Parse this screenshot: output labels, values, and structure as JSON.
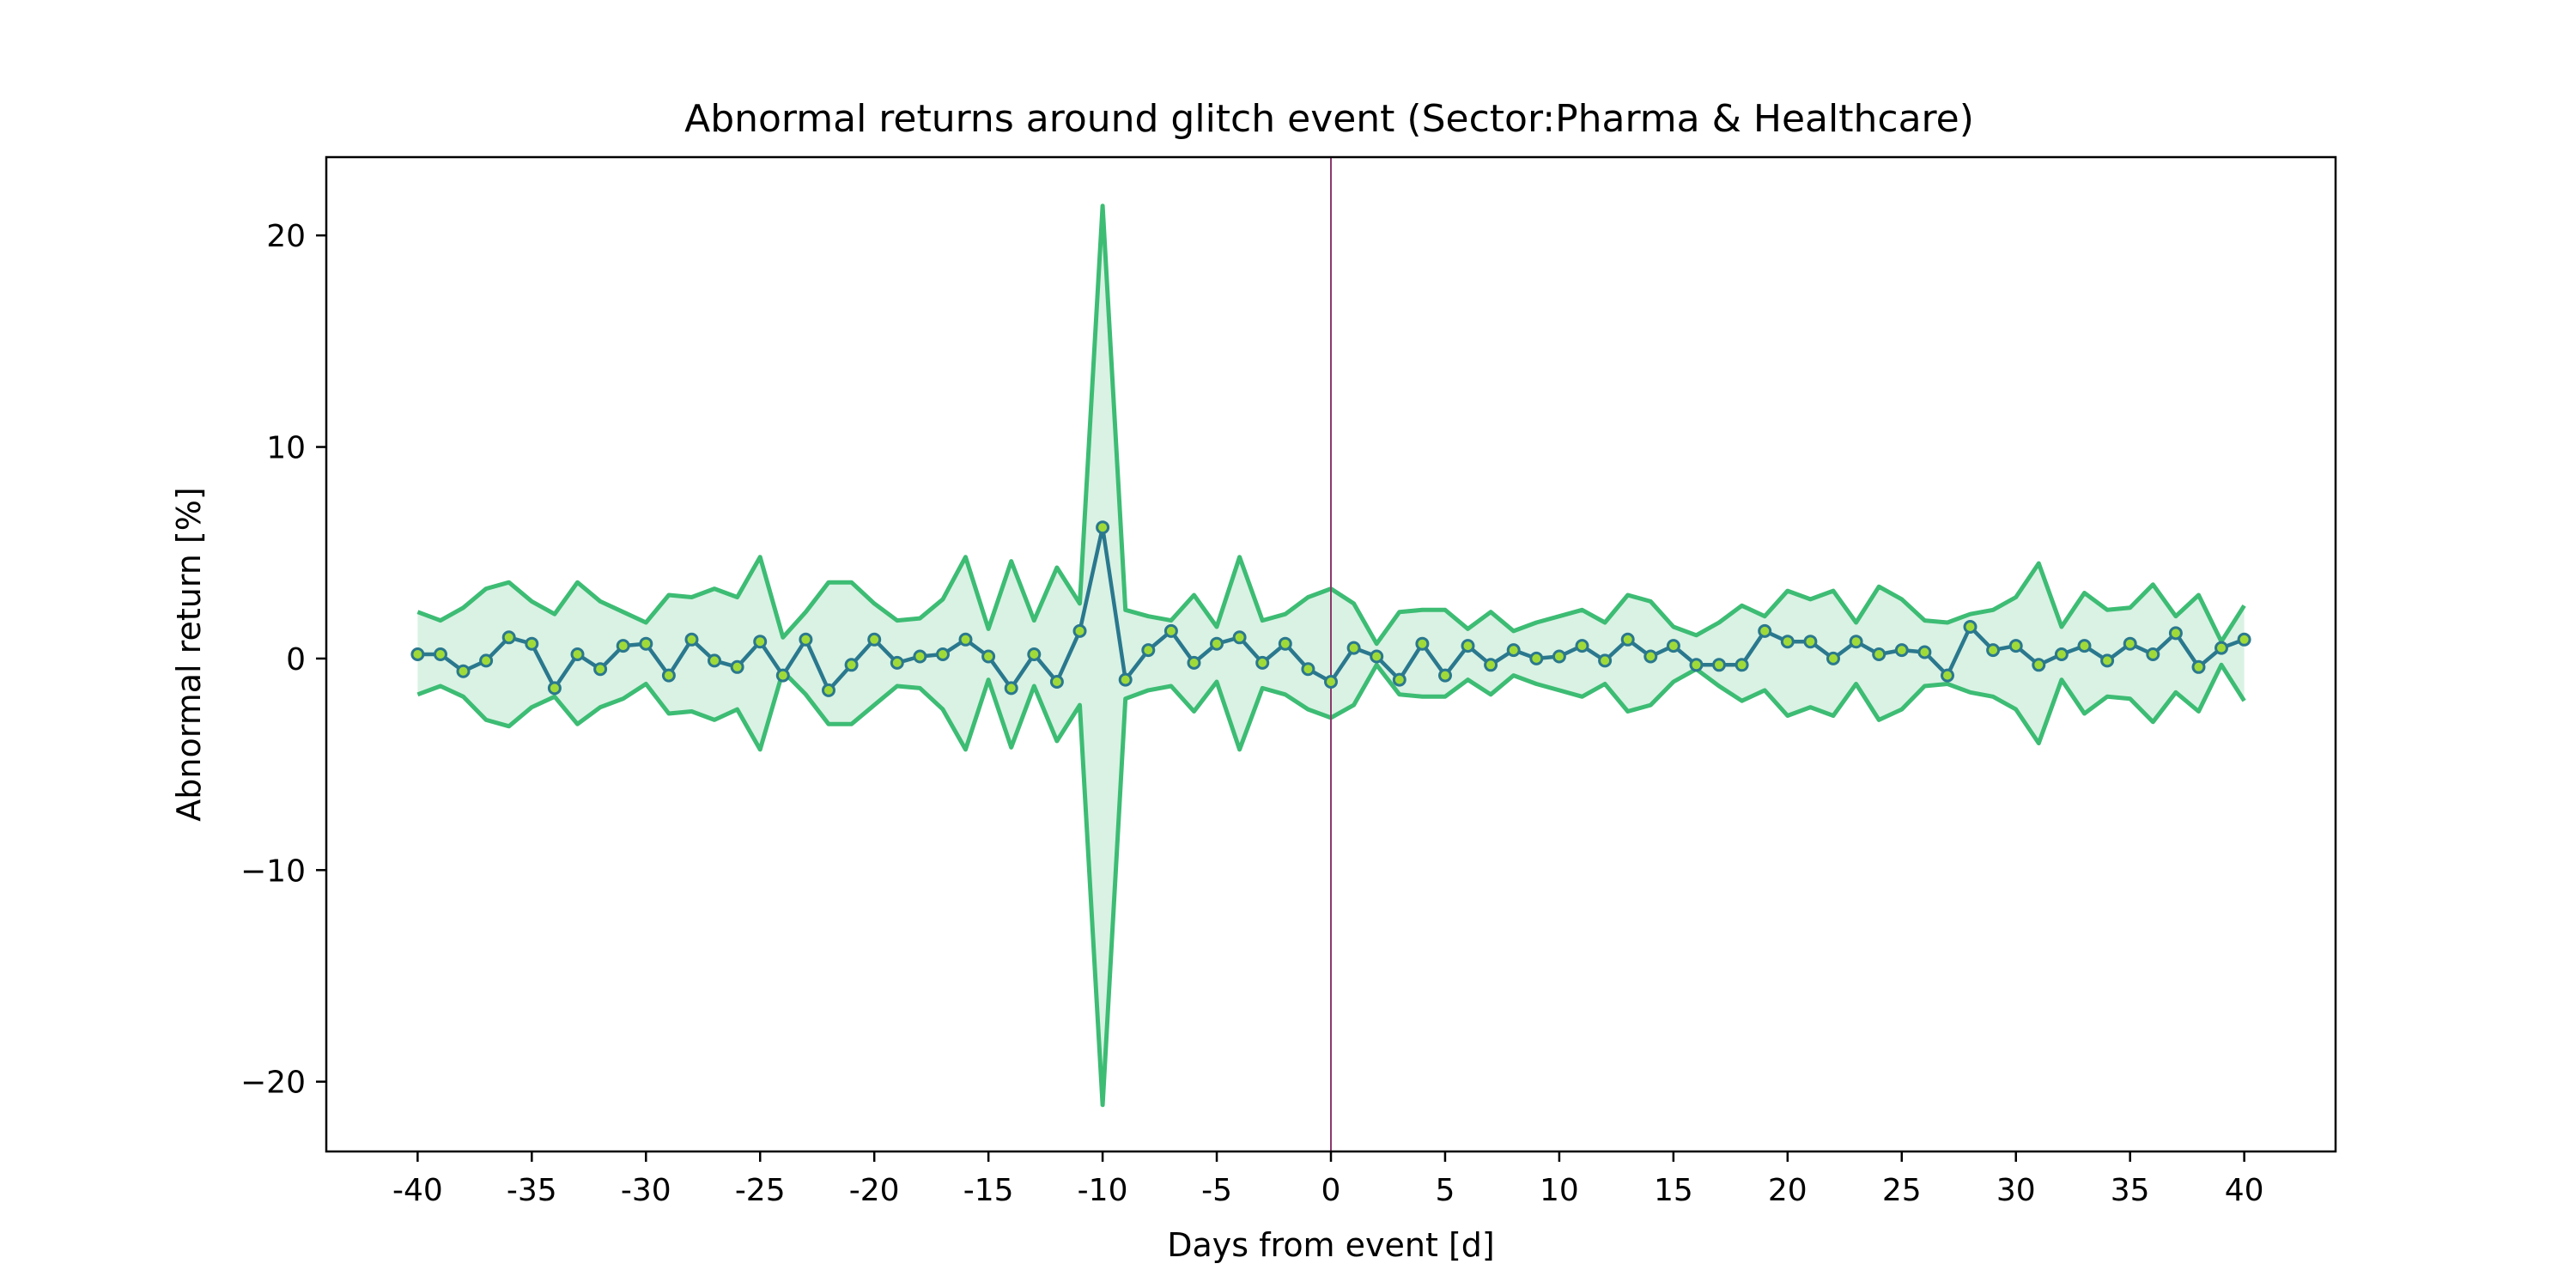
{
  "chart_data": {
    "type": "line",
    "title": "Abnormal returns around glitch event (Sector:Pharma & Healthcare)",
    "xlabel": "Days from event [d]",
    "ylabel": "Abnormal return [%]",
    "xlim": [
      -44,
      44
    ],
    "ylim": [
      -23.3,
      23.7
    ],
    "xticks": [
      -40,
      -35,
      -30,
      -25,
      -20,
      -15,
      -10,
      -5,
      0,
      5,
      10,
      15,
      20,
      25,
      30,
      35,
      40
    ],
    "xtick_labels": [
      "-40",
      "-35",
      "-30",
      "-25",
      "-20",
      "-15",
      "-10",
      "-5",
      "0",
      "5",
      "10",
      "15",
      "20",
      "25",
      "30",
      "35",
      "40"
    ],
    "yticks": [
      -20,
      -10,
      0,
      10,
      20
    ],
    "ytick_labels": [
      "−20",
      "−10",
      "0",
      "10",
      "20"
    ],
    "grid": false,
    "event_line_x": 0,
    "colors": {
      "mean_line": "#2a788e",
      "marker_fill": "#a0da39",
      "band_edge": "#3dbc74",
      "band_fill": "#d9f2e3",
      "event_line": "#8b3a6b"
    },
    "x": [
      -40,
      -39,
      -38,
      -37,
      -36,
      -35,
      -34,
      -33,
      -32,
      -31,
      -30,
      -29,
      -28,
      -27,
      -26,
      -25,
      -24,
      -23,
      -22,
      -21,
      -20,
      -19,
      -18,
      -17,
      -16,
      -15,
      -14,
      -13,
      -12,
      -11,
      -10,
      -9,
      -8,
      -7,
      -6,
      -5,
      -4,
      -3,
      -2,
      -1,
      0,
      1,
      2,
      3,
      4,
      5,
      6,
      7,
      8,
      9,
      10,
      11,
      12,
      13,
      14,
      15,
      16,
      17,
      18,
      19,
      20,
      21,
      22,
      23,
      24,
      25,
      26,
      27,
      28,
      29,
      30,
      31,
      32,
      33,
      34,
      35,
      36,
      37,
      38,
      39,
      40
    ],
    "mean": [
      0.2,
      0.2,
      -0.6,
      -0.1,
      1.0,
      0.7,
      -1.4,
      0.2,
      -0.5,
      0.6,
      0.7,
      -0.8,
      0.9,
      -0.1,
      -0.4,
      0.8,
      -0.8,
      0.9,
      -1.5,
      -0.3,
      0.9,
      -0.2,
      0.1,
      0.2,
      0.9,
      0.1,
      -1.4,
      0.2,
      -1.1,
      1.3,
      6.2,
      -1.0,
      0.4,
      1.3,
      -0.2,
      0.7,
      1.0,
      -0.2,
      0.7,
      -0.5,
      -1.1,
      0.5,
      0.1,
      -1.0,
      0.7,
      -0.8,
      0.6,
      -0.3,
      0.4,
      0.0,
      0.1,
      0.6,
      -0.1,
      0.9,
      0.1,
      0.6,
      -0.3,
      -0.3,
      -0.3,
      1.3,
      0.8,
      0.8,
      0.0,
      0.8,
      0.2,
      0.4,
      0.3,
      -0.8,
      1.5,
      0.4,
      0.6,
      -0.3,
      0.2,
      0.6,
      -0.1,
      0.7,
      0.2,
      1.2,
      -0.4,
      0.5,
      0.9
    ],
    "upper": [
      2.2,
      1.8,
      2.4,
      3.3,
      3.6,
      2.7,
      2.1,
      3.6,
      2.7,
      2.2,
      1.7,
      3.0,
      2.9,
      3.3,
      2.9,
      4.8,
      1.0,
      2.2,
      3.6,
      3.6,
      2.6,
      1.8,
      1.9,
      2.8,
      4.8,
      1.4,
      4.6,
      1.8,
      4.3,
      2.6,
      21.4,
      2.3,
      2.0,
      1.8,
      3.0,
      1.5,
      4.8,
      1.8,
      2.1,
      2.9,
      3.3,
      2.6,
      0.7,
      2.2,
      2.3,
      2.3,
      1.4,
      2.2,
      1.3,
      1.7,
      2.0,
      2.3,
      1.7,
      3.0,
      2.7,
      1.5,
      1.1,
      1.7,
      2.5,
      2.0,
      3.2,
      2.8,
      3.2,
      1.7,
      3.4,
      2.8,
      1.8,
      1.7,
      2.1,
      2.3,
      2.9,
      4.5,
      1.5,
      3.1,
      2.3,
      2.4,
      3.5,
      2.0,
      3.0,
      0.8,
      2.5
    ],
    "lower": [
      -1.7,
      -1.3,
      -1.8,
      -2.9,
      -3.2,
      -2.3,
      -1.8,
      -3.1,
      -2.3,
      -1.9,
      -1.2,
      -2.6,
      -2.5,
      -2.9,
      -2.4,
      -4.3,
      -0.6,
      -1.7,
      -3.1,
      -3.1,
      -2.2,
      -1.3,
      -1.4,
      -2.4,
      -4.3,
      -1.0,
      -4.2,
      -1.3,
      -3.9,
      -2.2,
      -21.1,
      -1.9,
      -1.5,
      -1.3,
      -2.5,
      -1.1,
      -4.3,
      -1.4,
      -1.7,
      -2.4,
      -2.8,
      -2.2,
      -0.3,
      -1.7,
      -1.8,
      -1.8,
      -1.0,
      -1.7,
      -0.8,
      -1.2,
      -1.5,
      -1.8,
      -1.2,
      -2.5,
      -2.2,
      -1.1,
      -0.5,
      -1.3,
      -2.0,
      -1.5,
      -2.7,
      -2.3,
      -2.7,
      -1.2,
      -2.9,
      -2.4,
      -1.3,
      -1.2,
      -1.6,
      -1.8,
      -2.4,
      -4.0,
      -1.0,
      -2.6,
      -1.8,
      -1.9,
      -3.0,
      -1.6,
      -2.5,
      -0.3,
      -2.0
    ]
  }
}
